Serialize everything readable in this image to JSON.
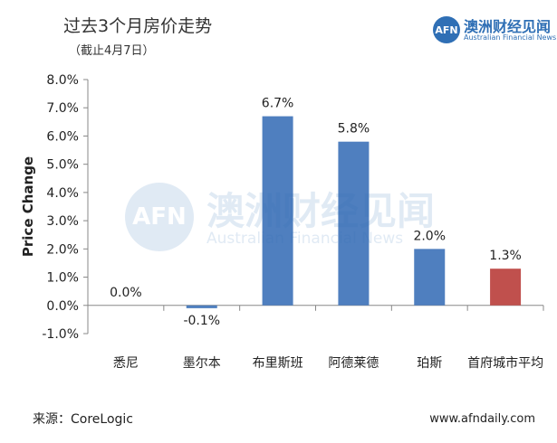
{
  "header": {
    "title": "过去3个月房价走势",
    "subtitle": "（截止4月7日）"
  },
  "logo": {
    "badge": "AFN",
    "cn": "澳洲财经见闻",
    "en": "Australian Financial News"
  },
  "watermark": {
    "badge": "AFN",
    "cn": "澳洲财经见闻",
    "en": "Australian Financial News"
  },
  "footer": {
    "source": "来源：CoreLogic",
    "website": "www.afndaily.com"
  },
  "colors": {
    "bar_default": "#4f7fbf",
    "bar_highlight": "#c0504d",
    "brand": "#2f6fb5"
  },
  "chart_data": {
    "type": "bar",
    "ylabel": "Price Change",
    "ylim": [
      -1,
      8
    ],
    "yticks": [
      -1,
      0,
      1,
      2,
      3,
      4,
      5,
      6,
      7,
      8
    ],
    "ytick_labels": [
      "-1.0%",
      "0.0%",
      "1.0%",
      "2.0%",
      "3.0%",
      "4.0%",
      "5.0%",
      "6.0%",
      "7.0%",
      "8.0%"
    ],
    "categories": [
      "悉尼",
      "墨尔本",
      "布里斯班",
      "阿德莱德",
      "珀斯",
      "首府城市平均"
    ],
    "values": [
      0.0,
      -0.1,
      6.7,
      5.8,
      2.0,
      1.3
    ],
    "data_labels": [
      "0.0%",
      "-0.1%",
      "6.7%",
      "5.8%",
      "2.0%",
      "1.3%"
    ],
    "highlight_index": 5,
    "grid": false,
    "legend": "none"
  }
}
